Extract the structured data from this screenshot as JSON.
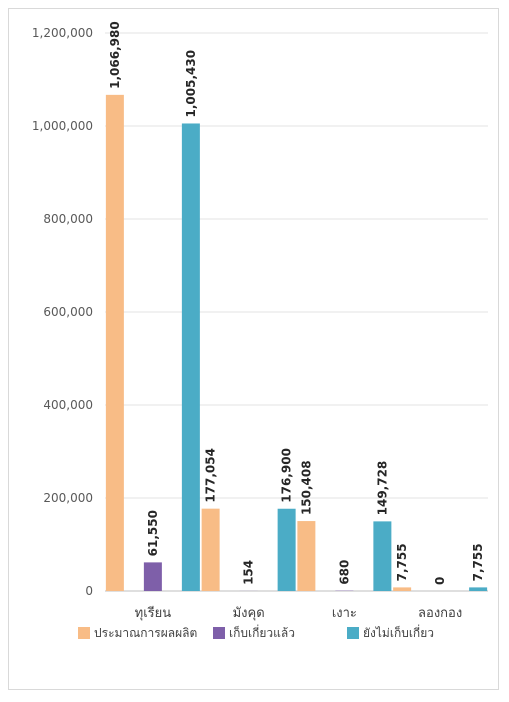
{
  "chart_data": {
    "type": "bar",
    "categories": [
      "ทุเรียน",
      "มังคุด",
      "เงาะ",
      "ลองกอง"
    ],
    "series": [
      {
        "name": "ประมาณการผลผลิต",
        "color": "#f8bc86",
        "values": [
          1066980,
          177054,
          150408,
          7755
        ],
        "labels": [
          "1,066,980",
          "177,054",
          "150,408",
          "7,755"
        ]
      },
      {
        "name": "เก็บเกี่ยวแล้ว",
        "color": "#7e5fa9",
        "values": [
          61550,
          154,
          680,
          0
        ],
        "labels": [
          "61,550",
          "154",
          "680",
          "0"
        ]
      },
      {
        "name": "ยังไม่เก็บเกี่ยว",
        "color": "#4bacc6",
        "values": [
          1005430,
          176900,
          149728,
          7755
        ],
        "labels": [
          "1,005,430",
          "176,900",
          "149,728",
          "7,755"
        ]
      }
    ],
    "ylim": [
      0,
      1200000
    ],
    "yticks": [
      0,
      200000,
      400000,
      600000,
      800000,
      1000000,
      1200000
    ],
    "ytick_labels": [
      "0",
      "200,000",
      "400,000",
      "600,000",
      "800,000",
      "1,000,000",
      "1,200,000"
    ],
    "grid": true,
    "legend": "bottom",
    "title": "",
    "xlabel": "",
    "ylabel": ""
  }
}
